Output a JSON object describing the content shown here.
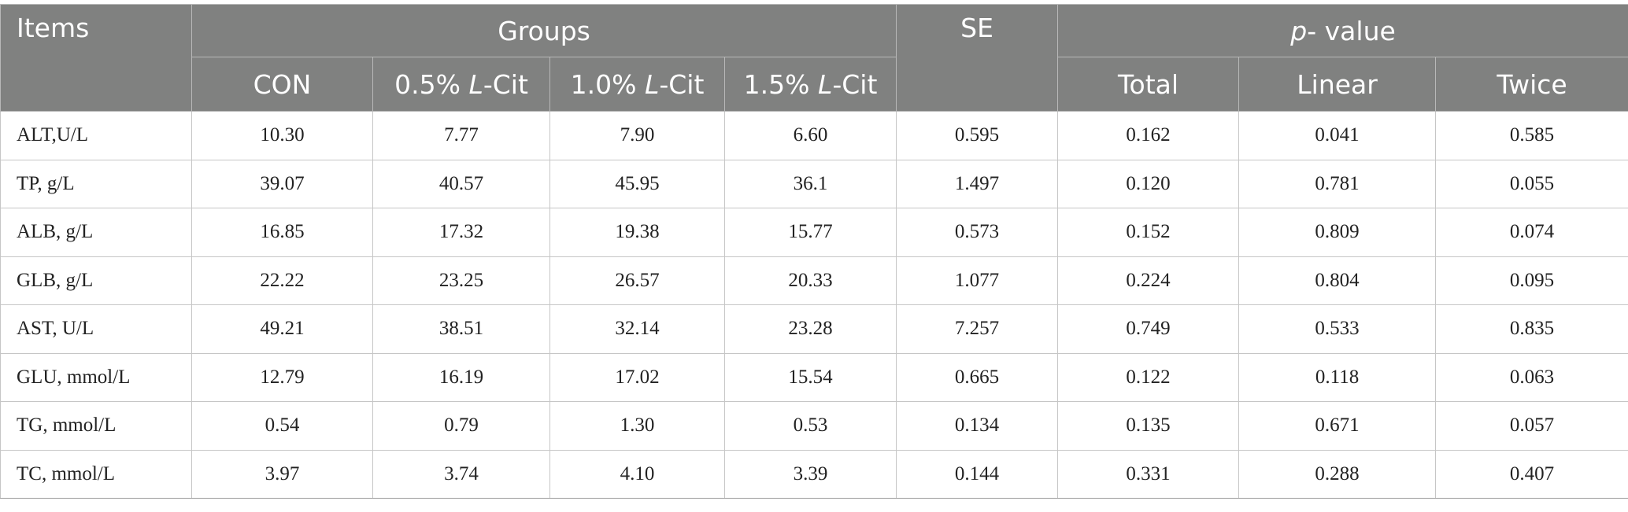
{
  "header": {
    "items": "Items",
    "groups": "Groups",
    "se": "SE",
    "pvalue_italic": "p",
    "pvalue_rest": "- value",
    "group_columns": [
      {
        "prefix": "CON",
        "italic": "",
        "suffix": ""
      },
      {
        "prefix": "0.5% ",
        "italic": "L",
        "suffix": "-Cit"
      },
      {
        "prefix": "1.0% ",
        "italic": "L",
        "suffix": "-Cit"
      },
      {
        "prefix": "1.5% ",
        "italic": "L",
        "suffix": "-Cit"
      }
    ],
    "pvalue_columns": [
      "Total",
      "Linear",
      "Twice"
    ]
  },
  "rows": [
    {
      "item": "ALT,U/L",
      "values": [
        "10.30",
        "7.77",
        "7.90",
        "6.60",
        "0.595",
        "0.162",
        "0.041",
        "0.585"
      ]
    },
    {
      "item": "TP, g/L",
      "values": [
        "39.07",
        "40.57",
        "45.95",
        "36.1",
        "1.497",
        "0.120",
        "0.781",
        "0.055"
      ]
    },
    {
      "item": "ALB, g/L",
      "values": [
        "16.85",
        "17.32",
        "19.38",
        "15.77",
        "0.573",
        "0.152",
        "0.809",
        "0.074"
      ]
    },
    {
      "item": "GLB, g/L",
      "values": [
        "22.22",
        "23.25",
        "26.57",
        "20.33",
        "1.077",
        "0.224",
        "0.804",
        "0.095"
      ]
    },
    {
      "item": "AST, U/L",
      "values": [
        "49.21",
        "38.51",
        "32.14",
        "23.28",
        "7.257",
        "0.749",
        "0.533",
        "0.835"
      ]
    },
    {
      "item": "GLU, mmol/L",
      "values": [
        "12.79",
        "16.19",
        "17.02",
        "15.54",
        "0.665",
        "0.122",
        "0.118",
        "0.063"
      ]
    },
    {
      "item": "TG, mmol/L",
      "values": [
        "0.54",
        "0.79",
        "1.30",
        "0.53",
        "0.134",
        "0.135",
        "0.671",
        "0.057"
      ]
    },
    {
      "item": "TC, mmol/L",
      "values": [
        "3.97",
        "3.74",
        "4.10",
        "3.39",
        "0.144",
        "0.331",
        "0.288",
        "0.407"
      ]
    }
  ]
}
